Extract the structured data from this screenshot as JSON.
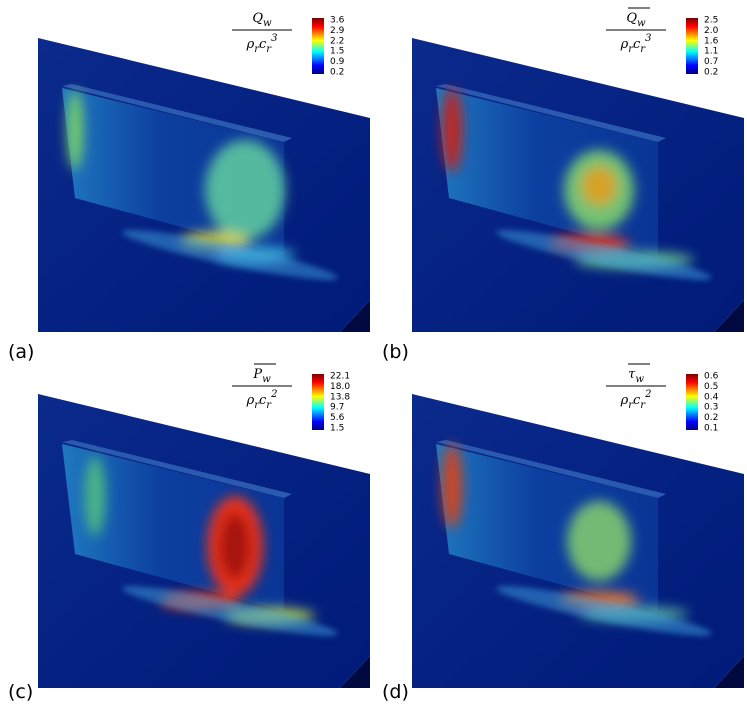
{
  "panels": [
    {
      "label": "(a)",
      "numerator": {
        "symbol": "Q",
        "sub": "w",
        "overline": false
      },
      "denominator": {
        "rho": "ρ",
        "rho_sub": "r",
        "c": "c",
        "c_sub": "r",
        "power": "3"
      },
      "colorbar_ticks": [
        "3.6",
        "2.9",
        "2.2",
        "1.5",
        "0.9",
        "0.2"
      ]
    },
    {
      "label": "(b)",
      "numerator": {
        "symbol": "Q",
        "sub": "w",
        "overline": true
      },
      "denominator": {
        "rho": "ρ",
        "rho_sub": "r",
        "c": "c",
        "c_sub": "r",
        "power": "3"
      },
      "colorbar_ticks": [
        "2.5",
        "2.0",
        "1.6",
        "1.1",
        "0.7",
        "0.2"
      ]
    },
    {
      "label": "(c)",
      "numerator": {
        "symbol": "P",
        "sub": "w",
        "overline": true
      },
      "denominator": {
        "rho": "ρ",
        "rho_sub": "r",
        "c": "c",
        "c_sub": "r",
        "power": "2"
      },
      "colorbar_ticks": [
        "22.1",
        "18.0",
        "13.8",
        "9.7",
        "5.6",
        "1.5"
      ]
    },
    {
      "label": "(d)",
      "numerator": {
        "symbol": "τ",
        "sub": "w",
        "overline": true
      },
      "denominator": {
        "rho": "ρ",
        "rho_sub": "r",
        "c": "c",
        "c_sub": "r",
        "power": "2"
      },
      "colorbar_ticks": [
        "0.6",
        "0.5",
        "0.4",
        "0.3",
        "0.2",
        "0.1"
      ]
    }
  ]
}
